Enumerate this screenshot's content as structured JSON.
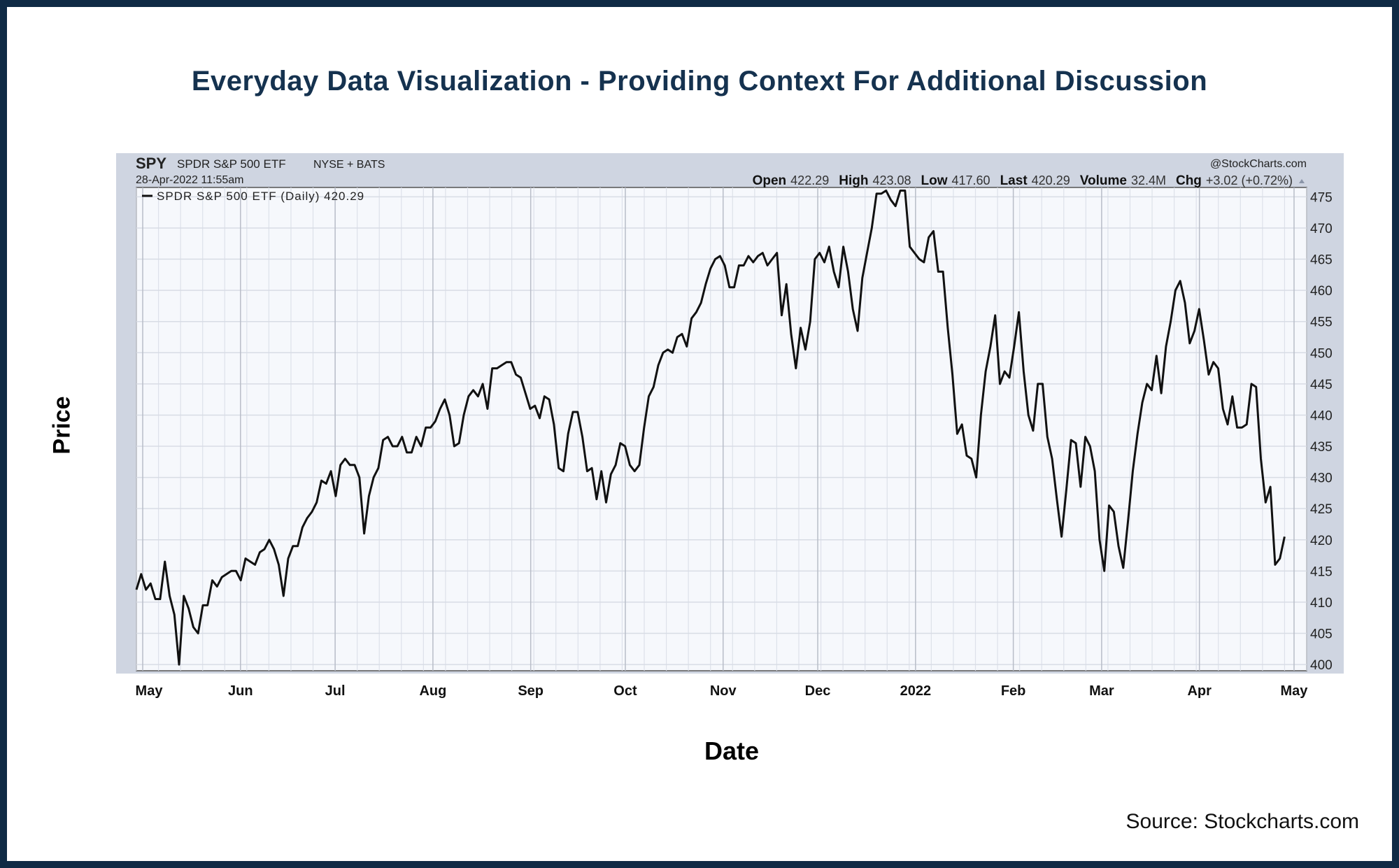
{
  "title": "Everyday Data Visualization - Providing Context For Additional Discussion",
  "source": "Source: Stockcharts.com",
  "chart_data": {
    "type": "line",
    "title": "",
    "xlabel": "Date",
    "ylabel": "Price",
    "header": {
      "symbol": "SPY",
      "name": "SPDR S&P 500 ETF",
      "exchange": "NYSE + BATS",
      "timestamp": "28-Apr-2022 11:55am",
      "watermark": "@StockCharts.com",
      "stats": [
        {
          "label": "Open",
          "value": "422.29"
        },
        {
          "label": "High",
          "value": "423.08"
        },
        {
          "label": "Low",
          "value": "417.60"
        },
        {
          "label": "Last",
          "value": "420.29"
        },
        {
          "label": "Volume",
          "value": "32.4M"
        },
        {
          "label": "Chg",
          "value": "+3.02 (+0.72%)"
        }
      ],
      "legend": "SPDR S&P 500 ETF (Daily) 420.29"
    },
    "xlim": [
      "2021-04-29",
      "2022-05-05"
    ],
    "ylim": [
      399,
      476.5
    ],
    "y_ticks": [
      400,
      405,
      410,
      415,
      420,
      425,
      430,
      435,
      440,
      445,
      450,
      455,
      460,
      465,
      470,
      475
    ],
    "x_ticks": [
      {
        "date": "2021-05-01",
        "label": "May"
      },
      {
        "date": "2021-06-01",
        "label": "Jun"
      },
      {
        "date": "2021-07-01",
        "label": "Jul"
      },
      {
        "date": "2021-08-01",
        "label": "Aug"
      },
      {
        "date": "2021-09-01",
        "label": "Sep"
      },
      {
        "date": "2021-10-01",
        "label": "Oct"
      },
      {
        "date": "2021-11-01",
        "label": "Nov"
      },
      {
        "date": "2021-12-01",
        "label": "Dec"
      },
      {
        "date": "2022-01-01",
        "label": "2022"
      },
      {
        "date": "2022-02-01",
        "label": "Feb"
      },
      {
        "date": "2022-03-01",
        "label": "Mar"
      },
      {
        "date": "2022-04-01",
        "label": "Apr"
      },
      {
        "date": "2022-05-01",
        "label": "May"
      }
    ],
    "grid": true,
    "series": [
      {
        "name": "SPDR S&P 500 ETF (Daily)",
        "color": "#111111",
        "start_date": "2021-04-29",
        "end_date": "2022-04-28",
        "frequency": "daily",
        "values": [
          412,
          414.5,
          412,
          413,
          410.5,
          410.5,
          416.5,
          411,
          408,
          400,
          411,
          409,
          406,
          405,
          409.5,
          409.5,
          413.5,
          412.5,
          414,
          414.5,
          415,
          415,
          413.5,
          417,
          416.5,
          416,
          418,
          418.5,
          420,
          418.5,
          416,
          411,
          417,
          419,
          419,
          422,
          423.5,
          424.5,
          426,
          429.5,
          429,
          431,
          427,
          432,
          433,
          432,
          432,
          430,
          421,
          427,
          430,
          431.5,
          436,
          436.5,
          435,
          435,
          436.5,
          434,
          434,
          436.5,
          435,
          438,
          438,
          439,
          441,
          442.5,
          440,
          435,
          435.5,
          440,
          443,
          444,
          443,
          445,
          441,
          447.5,
          447.5,
          448,
          448.5,
          448.5,
          446.5,
          446,
          443.5,
          441,
          441.5,
          439.5,
          443,
          442.5,
          438.5,
          431.5,
          431,
          437,
          440.5,
          440.5,
          436.5,
          431,
          431.5,
          426.5,
          431,
          426,
          430.5,
          432,
          435.5,
          435,
          432,
          431,
          432,
          438,
          443,
          444.5,
          448,
          450,
          450.5,
          450,
          452.5,
          453,
          451,
          455.5,
          456.5,
          458,
          461,
          463.5,
          465,
          465.5,
          464,
          460.5,
          460.5,
          464,
          464,
          465.5,
          464.5,
          465.5,
          466,
          464,
          465,
          466,
          456,
          461,
          453,
          447.5,
          454,
          450.5,
          455,
          465,
          466,
          464.5,
          467,
          463,
          460.5,
          467,
          463,
          457,
          453.5,
          462,
          466,
          470,
          475.5,
          475.5,
          476,
          474.5,
          473.5,
          476,
          476,
          467,
          466,
          465,
          464.5,
          468.5,
          469.5,
          463,
          463,
          454,
          446.5,
          437,
          438.5,
          433.5,
          433,
          430,
          440,
          447,
          451,
          456,
          445,
          447,
          446,
          451,
          456.5,
          447,
          440,
          437.5,
          445,
          445,
          436.5,
          433,
          426.5,
          420.5,
          428,
          436,
          435.5,
          428.5,
          436.5,
          435,
          431,
          420,
          415,
          425.5,
          424.5,
          419,
          415.5,
          423,
          431,
          437,
          442,
          445,
          444,
          449.5,
          443.5,
          451,
          455,
          460,
          461.5,
          458,
          451.5,
          453.5,
          457,
          452,
          446.5,
          448.5,
          447.5,
          441,
          438.5,
          443,
          438,
          438,
          438.5,
          445,
          444.5,
          433,
          426,
          428.5,
          416,
          417,
          420.5
        ]
      }
    ]
  }
}
